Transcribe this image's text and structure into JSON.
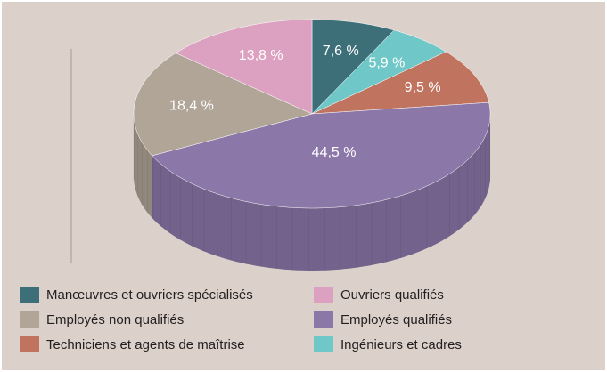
{
  "chart_data": {
    "type": "pie3d",
    "categories": [
      "Manœuvres et ouvriers spécialisés",
      "Ingénieurs et cadres",
      "Techniciens et agents de maîtrise",
      "Employés qualifiés",
      "Employés non qualifiés",
      "Ouvriers qualifiés"
    ],
    "values": [
      7.6,
      5.9,
      9.5,
      44.5,
      18.4,
      13.8
    ],
    "value_labels": [
      "7,6 %",
      "5,9 %",
      "9,5 %",
      "44,5 %",
      "18,4 %",
      "13,8 %"
    ],
    "colors": [
      "#3d6f79",
      "#6fc7c7",
      "#c0745f",
      "#8c77a9",
      "#b1a597",
      "#dca1c0"
    ]
  }
}
